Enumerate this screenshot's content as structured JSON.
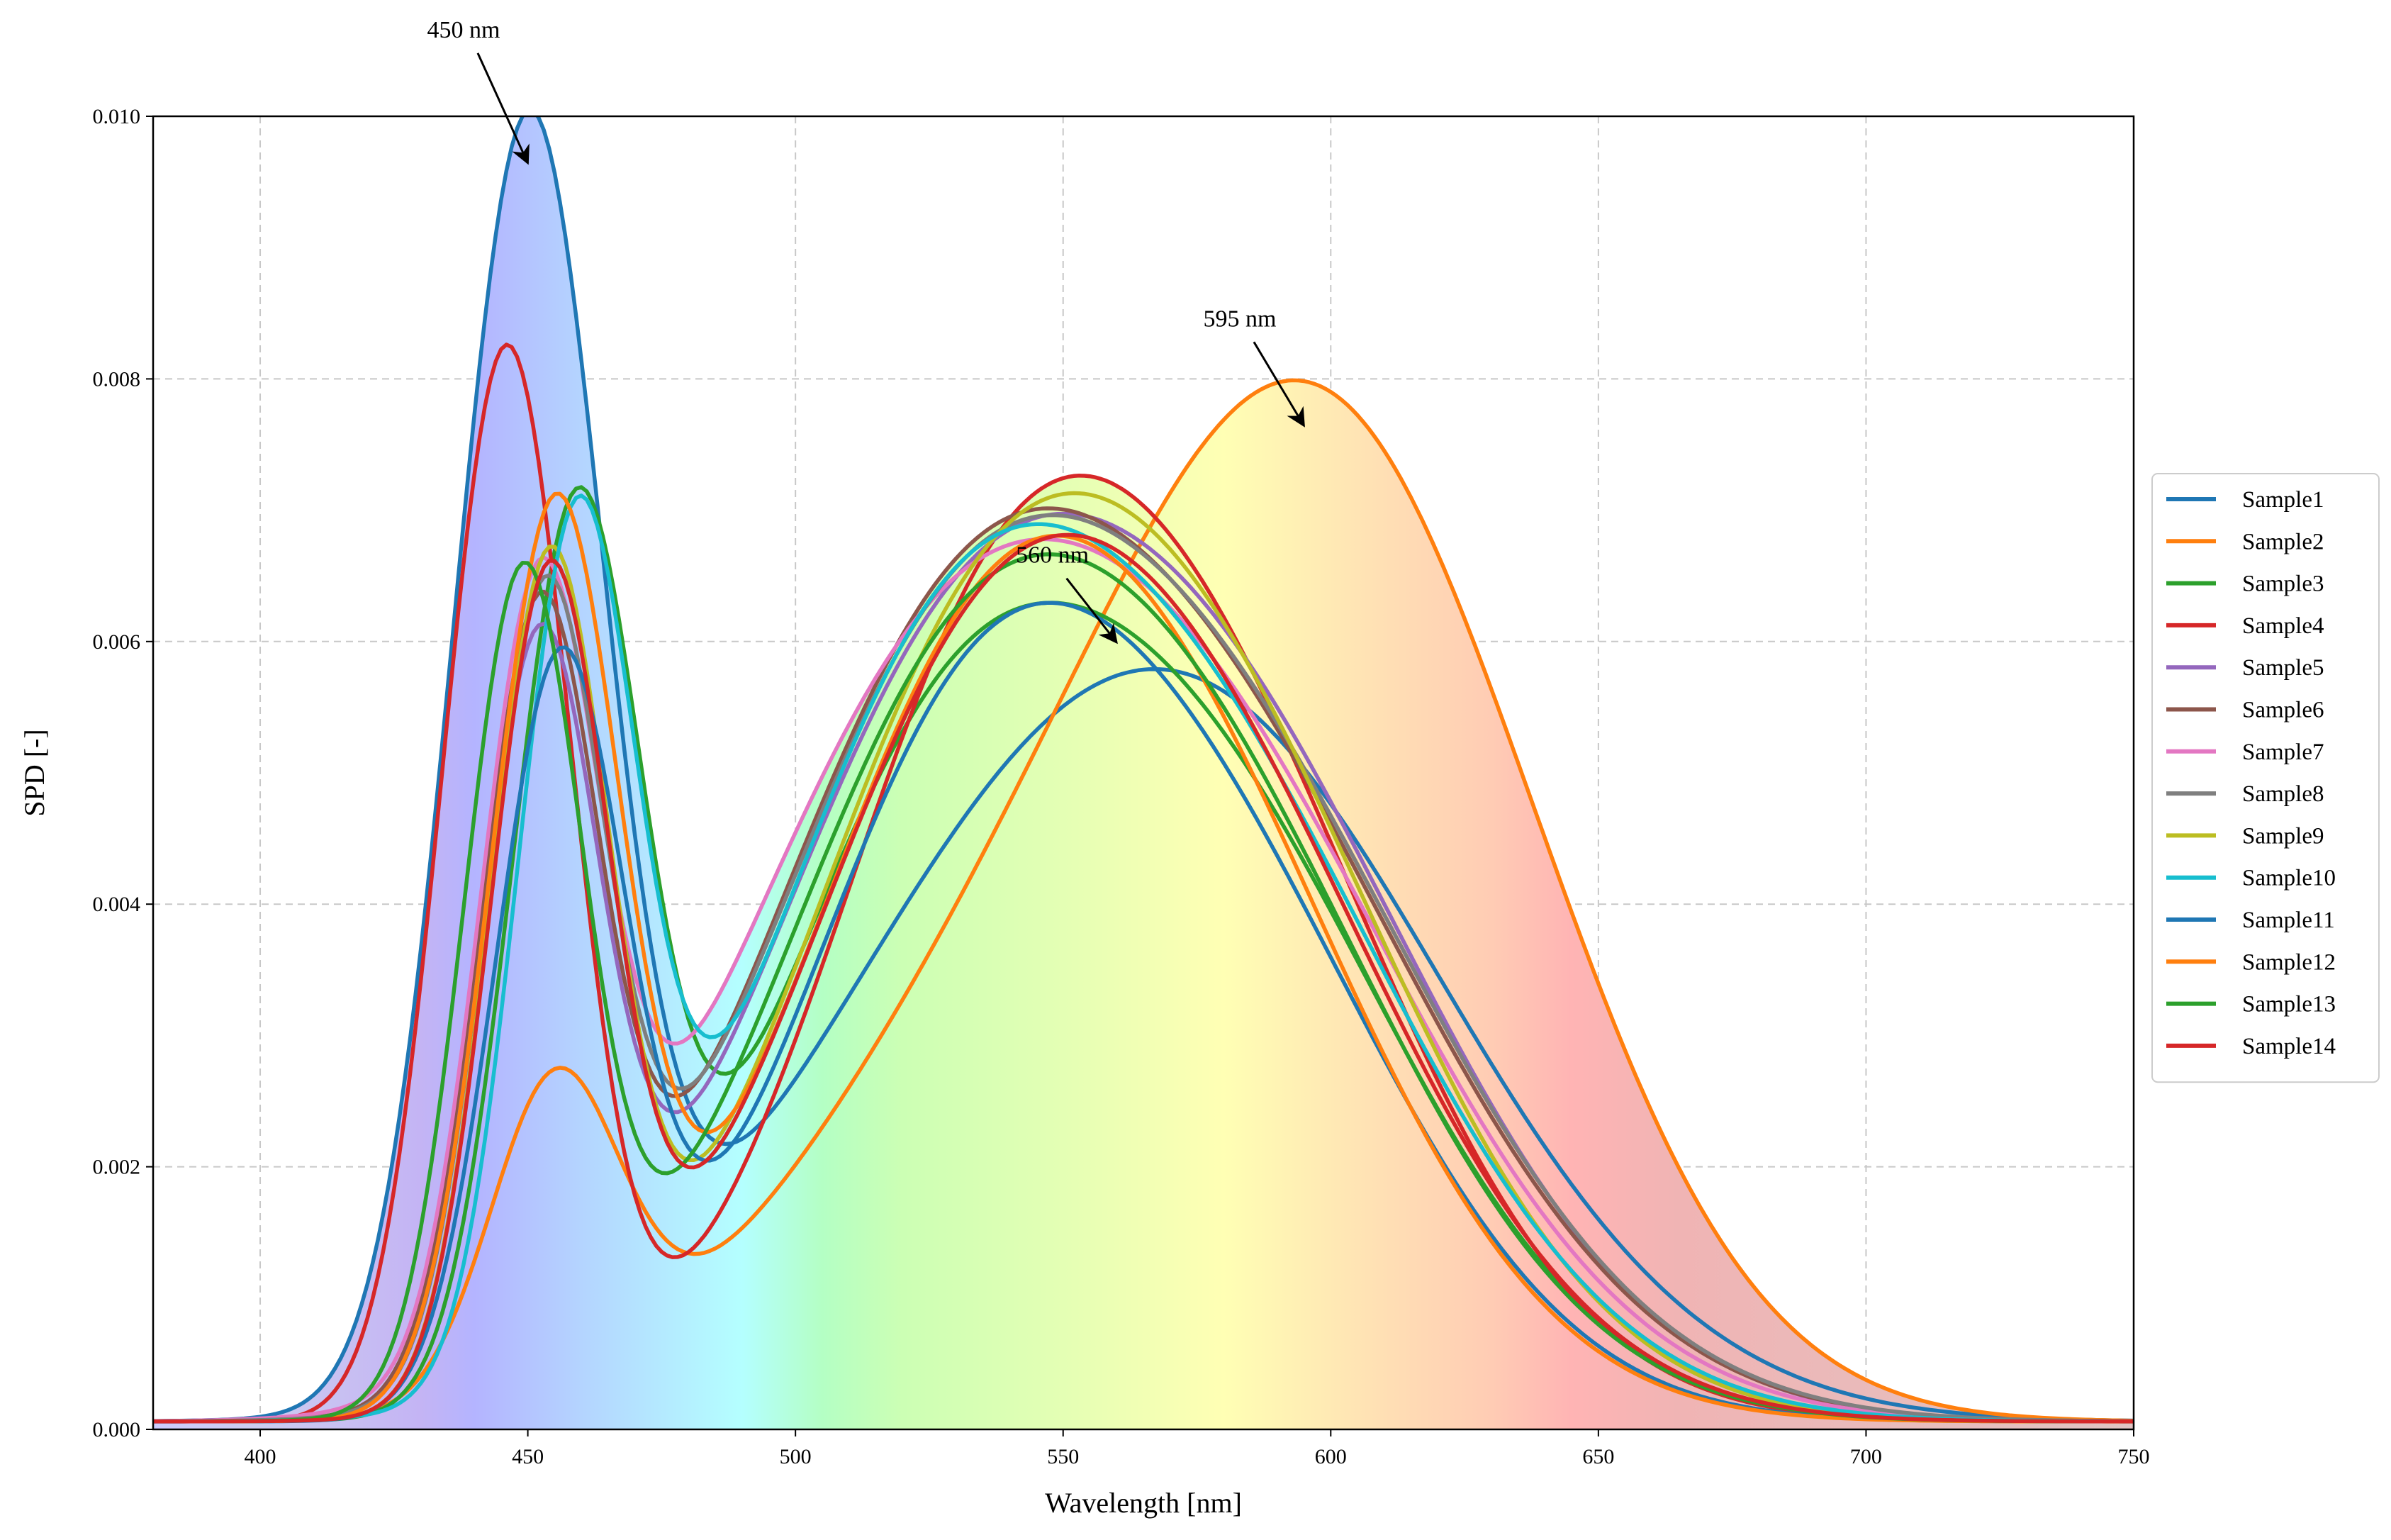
{
  "chart_data": {
    "type": "line",
    "xlabel": "Wavelength [nm]",
    "ylabel": "SPD [-]",
    "xlim": [
      380,
      750
    ],
    "ylim": [
      0,
      0.01
    ],
    "xticks": [
      400,
      450,
      500,
      550,
      600,
      650,
      700,
      750
    ],
    "xtick_labels": [
      "400",
      "450",
      "500",
      "550",
      "600",
      "650",
      "700",
      "750"
    ],
    "yticks": [
      0,
      0.002,
      0.004,
      0.006,
      0.008,
      0.01
    ],
    "ytick_labels": [
      "0.000",
      "0.002",
      "0.004",
      "0.006",
      "0.008",
      "0.010"
    ],
    "grid": true,
    "legend_position": "right",
    "background": "visible-spectrum gradient fill under the envelope of all curves",
    "annotations": [
      {
        "text": "450 nm",
        "x": 450,
        "y": 0.0096,
        "text_x": 438,
        "text_y": 0.0106
      },
      {
        "text": "595 nm",
        "x": 595,
        "y": 0.0076,
        "text_x": 583,
        "text_y": 0.0084
      },
      {
        "text": "560 nm",
        "x": 560,
        "y": 0.00595,
        "text_x": 548,
        "text_y": 0.0066
      }
    ],
    "series": [
      {
        "name": "Sample1",
        "color": "#1f77b4",
        "base": 6e-05,
        "peaks": [
          [
            450,
            0.00955,
            14
          ],
          [
            520,
            0.0012,
            40
          ],
          [
            575,
            0.0052,
            48
          ]
        ]
      },
      {
        "name": "Sample2",
        "color": "#ff7f0e",
        "base": 6e-05,
        "peaks": [
          [
            455,
            0.00235,
            12
          ],
          [
            535,
            0.0024,
            40
          ],
          [
            600,
            0.0072,
            40
          ]
        ]
      },
      {
        "name": "Sample3",
        "color": "#2ca02c",
        "base": 6e-05,
        "peaks": [
          [
            459,
            0.0066,
            12
          ],
          [
            520,
            0.0026,
            30
          ],
          [
            568,
            0.0051,
            42
          ]
        ]
      },
      {
        "name": "Sample4",
        "color": "#d62728",
        "base": 6e-05,
        "peaks": [
          [
            446,
            0.0081,
            12
          ],
          [
            530,
            0.0028,
            30
          ],
          [
            570,
            0.0056,
            40
          ]
        ]
      },
      {
        "name": "Sample5",
        "color": "#9467bd",
        "base": 6e-05,
        "peaks": [
          [
            452,
            0.0055,
            11
          ],
          [
            520,
            0.003,
            34
          ],
          [
            572,
            0.0055,
            45
          ]
        ]
      },
      {
        "name": "Sample6",
        "color": "#8c564b",
        "base": 6e-05,
        "peaks": [
          [
            452,
            0.0057,
            11
          ],
          [
            520,
            0.003,
            34
          ],
          [
            570,
            0.0054,
            46
          ]
        ]
      },
      {
        "name": "Sample7",
        "color": "#e377c2",
        "base": 6e-05,
        "peaks": [
          [
            452,
            0.0057,
            11
          ],
          [
            515,
            0.0032,
            36
          ],
          [
            570,
            0.0052,
            45
          ]
        ]
      },
      {
        "name": "Sample8",
        "color": "#7f7f7f",
        "base": 6e-05,
        "peaks": [
          [
            453,
            0.0058,
            11
          ],
          [
            520,
            0.003,
            34
          ],
          [
            571,
            0.0054,
            46
          ]
        ]
      },
      {
        "name": "Sample9",
        "color": "#bcbd22",
        "base": 6e-05,
        "peaks": [
          [
            454,
            0.0063,
            11
          ],
          [
            525,
            0.0028,
            32
          ],
          [
            570,
            0.0056,
            42
          ]
        ]
      },
      {
        "name": "Sample10",
        "color": "#17becf",
        "base": 6e-05,
        "peaks": [
          [
            459,
            0.0063,
            11
          ],
          [
            520,
            0.003,
            32
          ],
          [
            568,
            0.0053,
            44
          ]
        ]
      },
      {
        "name": "Sample11",
        "color": "#1f77b4",
        "base": 6e-05,
        "peaks": [
          [
            456,
            0.0056,
            12
          ],
          [
            525,
            0.0028,
            30
          ],
          [
            568,
            0.0047,
            40
          ]
        ]
      },
      {
        "name": "Sample12",
        "color": "#ff7f0e",
        "base": 6e-05,
        "peaks": [
          [
            455,
            0.0067,
            12
          ],
          [
            525,
            0.0027,
            32
          ],
          [
            565,
            0.0051,
            40
          ]
        ]
      },
      {
        "name": "Sample13",
        "color": "#2ca02c",
        "base": 6e-05,
        "peaks": [
          [
            449,
            0.0062,
            11
          ],
          [
            520,
            0.0028,
            32
          ],
          [
            567,
            0.0052,
            42
          ]
        ]
      },
      {
        "name": "Sample14",
        "color": "#d62728",
        "base": 6e-05,
        "peaks": [
          [
            454,
            0.0062,
            11
          ],
          [
            525,
            0.0026,
            32
          ],
          [
            568,
            0.0053,
            42
          ]
        ]
      }
    ]
  }
}
